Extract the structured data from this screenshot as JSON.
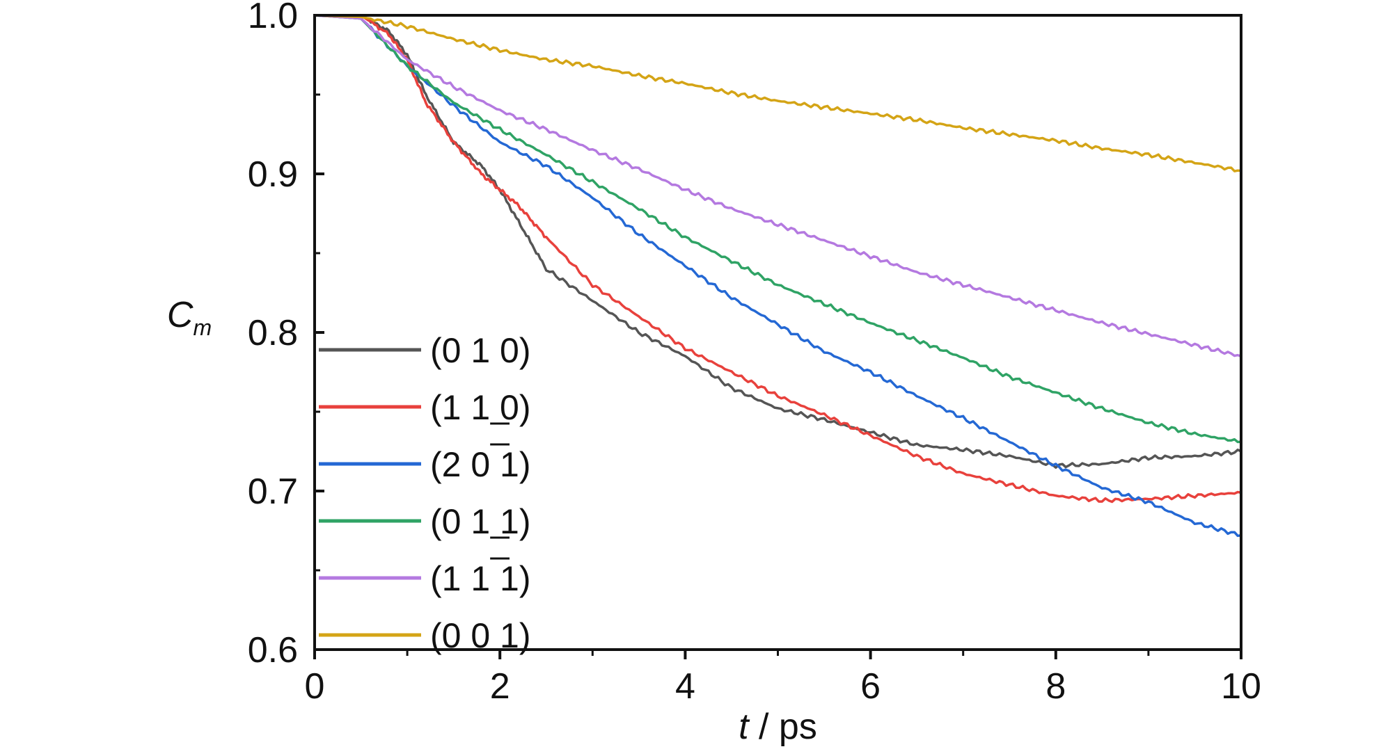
{
  "chart_data": {
    "type": "line",
    "xlabel": {
      "var": "t",
      "unit": " / ps"
    },
    "ylabel": {
      "var": "C",
      "sub": "m"
    },
    "xlim": [
      0,
      10
    ],
    "ylim": [
      0.6,
      1.0
    ],
    "xticks": [
      0,
      2,
      4,
      6,
      8,
      10
    ],
    "xtick_labels": [
      "0",
      "2",
      "4",
      "6",
      "8",
      "10"
    ],
    "yticks": [
      0.6,
      0.7,
      0.8,
      0.9,
      1.0
    ],
    "ytick_labels": [
      "0.6",
      "0.7",
      "0.8",
      "0.9",
      "1.0"
    ],
    "grid": false,
    "legend_position": "left",
    "series": [
      {
        "name": "(0 1 0)",
        "color": "#555555",
        "x": [
          0,
          0.5,
          0.8,
          1.0,
          1.2,
          1.5,
          1.8,
          2.0,
          2.2,
          2.5,
          3.0,
          3.5,
          4.0,
          4.5,
          5.0,
          5.5,
          6.0,
          6.5,
          7.0,
          7.5,
          8.0,
          8.5,
          9.0,
          9.5,
          10.0
        ],
        "y": [
          1.0,
          1.0,
          0.99,
          0.975,
          0.95,
          0.92,
          0.905,
          0.89,
          0.87,
          0.84,
          0.82,
          0.8,
          0.785,
          0.765,
          0.752,
          0.745,
          0.737,
          0.729,
          0.726,
          0.722,
          0.716,
          0.717,
          0.721,
          0.722,
          0.725
        ]
      },
      {
        "name": "(1 1 0)",
        "bar": "0",
        "bar_position": "below",
        "color": "#e8413c",
        "x": [
          0,
          0.5,
          0.8,
          1.0,
          1.2,
          1.5,
          1.8,
          2.0,
          2.2,
          2.5,
          3.0,
          3.5,
          4.0,
          4.5,
          5.0,
          5.5,
          6.0,
          6.5,
          7.0,
          7.5,
          8.0,
          8.5,
          9.0,
          9.5,
          10.0
        ],
        "y": [
          1.0,
          1.0,
          0.988,
          0.972,
          0.945,
          0.92,
          0.9,
          0.89,
          0.88,
          0.86,
          0.83,
          0.81,
          0.79,
          0.775,
          0.76,
          0.748,
          0.735,
          0.722,
          0.711,
          0.704,
          0.697,
          0.694,
          0.695,
          0.697,
          0.699
        ]
      },
      {
        "name": "(2 0 1)",
        "bar": "1",
        "bar_position": "above",
        "color": "#2468d4",
        "x": [
          0,
          0.5,
          1.0,
          1.5,
          2.0,
          2.5,
          3.0,
          3.5,
          4.0,
          4.5,
          5.0,
          5.5,
          6.0,
          6.5,
          7.0,
          7.5,
          8.0,
          8.5,
          9.0,
          9.5,
          10.0
        ],
        "y": [
          1.0,
          0.998,
          0.968,
          0.943,
          0.92,
          0.905,
          0.885,
          0.862,
          0.842,
          0.822,
          0.805,
          0.788,
          0.775,
          0.76,
          0.746,
          0.731,
          0.716,
          0.702,
          0.693,
          0.68,
          0.672
        ]
      },
      {
        "name": "(0 1 1)",
        "bar": "1",
        "bar_position": "below",
        "color": "#2fa365",
        "x": [
          0,
          0.5,
          1.0,
          1.5,
          2.0,
          2.5,
          3.0,
          3.5,
          4.0,
          4.5,
          5.0,
          5.5,
          6.0,
          6.5,
          7.0,
          7.5,
          8.0,
          8.5,
          9.0,
          9.5,
          10.0
        ],
        "y": [
          1.0,
          0.998,
          0.968,
          0.945,
          0.928,
          0.912,
          0.895,
          0.878,
          0.86,
          0.845,
          0.83,
          0.818,
          0.806,
          0.795,
          0.784,
          0.772,
          0.762,
          0.752,
          0.743,
          0.736,
          0.731
        ]
      },
      {
        "name": "(1 1 1)",
        "bar": "1",
        "bar_position": "above",
        "color": "#b479e0",
        "x": [
          0,
          0.5,
          1.0,
          1.5,
          2.0,
          2.5,
          3.0,
          3.5,
          4.0,
          4.5,
          5.0,
          5.5,
          6.0,
          6.5,
          7.0,
          7.5,
          8.0,
          8.5,
          9.0,
          9.5,
          10.0
        ],
        "y": [
          1.0,
          0.998,
          0.972,
          0.955,
          0.94,
          0.928,
          0.915,
          0.903,
          0.89,
          0.878,
          0.868,
          0.858,
          0.848,
          0.838,
          0.83,
          0.822,
          0.814,
          0.806,
          0.799,
          0.792,
          0.785
        ]
      },
      {
        "name": "(0 0 1)",
        "color": "#d4a416",
        "x": [
          0,
          0.5,
          1.0,
          1.5,
          2.0,
          2.5,
          3.0,
          3.5,
          4.0,
          4.5,
          5.0,
          5.5,
          6.0,
          6.5,
          7.0,
          7.5,
          8.0,
          8.5,
          9.0,
          9.5,
          10.0
        ],
        "y": [
          1.0,
          0.999,
          0.993,
          0.985,
          0.978,
          0.972,
          0.968,
          0.962,
          0.957,
          0.951,
          0.946,
          0.942,
          0.938,
          0.934,
          0.929,
          0.925,
          0.921,
          0.916,
          0.912,
          0.907,
          0.902
        ]
      }
    ]
  }
}
